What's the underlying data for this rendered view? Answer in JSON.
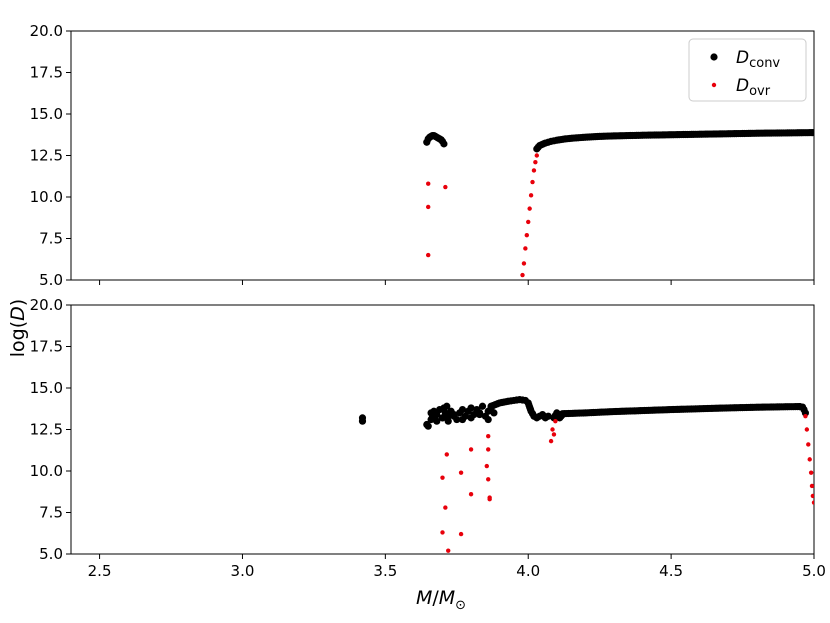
{
  "chart_data": [
    {
      "type": "scatter",
      "panel": "top",
      "xlim": [
        2.4,
        5.0
      ],
      "ylim": [
        5.0,
        20.0
      ],
      "yticks": [
        "5.0",
        "7.5",
        "10.0",
        "12.5",
        "15.0",
        "17.5",
        "20.0"
      ],
      "legend": {
        "placement": "top-right",
        "entries": [
          {
            "math": "D",
            "sub": "conv",
            "color": "#000000"
          },
          {
            "math": "D",
            "sub": "ovr",
            "color": "#e8000b"
          }
        ]
      },
      "series": [
        {
          "key": "conv",
          "color": "#000000",
          "segments": [
            {
              "x": [
                3.645,
                3.65,
                3.655,
                3.66,
                3.665,
                3.67,
                3.675,
                3.68,
                3.685,
                3.69,
                3.695,
                3.7,
                3.705
              ],
              "y": [
                13.3,
                13.5,
                13.6,
                13.65,
                13.7,
                13.7,
                13.65,
                13.6,
                13.55,
                13.5,
                13.45,
                13.35,
                13.2
              ]
            },
            {
              "x": [
                4.03,
                4.04,
                4.06,
                4.08,
                4.1,
                4.13,
                4.16,
                4.2,
                4.25,
                4.3,
                4.4,
                4.5,
                4.6,
                4.7,
                4.8,
                4.9,
                5.0
              ],
              "y": [
                12.9,
                13.1,
                13.25,
                13.35,
                13.42,
                13.5,
                13.55,
                13.6,
                13.65,
                13.68,
                13.72,
                13.75,
                13.78,
                13.81,
                13.84,
                13.86,
                13.88
              ]
            }
          ]
        },
        {
          "key": "ovr",
          "color": "#e8000b",
          "points": {
            "x": [
              3.65,
              3.65,
              3.65,
              3.71,
              3.98,
              3.985,
              3.99,
              3.995,
              4.0,
              4.005,
              4.01,
              4.015,
              4.02,
              4.025,
              4.03
            ],
            "y": [
              10.8,
              9.4,
              6.5,
              10.6,
              5.3,
              6.0,
              6.9,
              7.7,
              8.5,
              9.3,
              10.1,
              10.9,
              11.6,
              12.1,
              12.5
            ]
          }
        }
      ]
    },
    {
      "type": "scatter",
      "panel": "bottom",
      "xlim": [
        2.4,
        5.0
      ],
      "ylim": [
        5.0,
        20.0
      ],
      "xticks": [
        "2.5",
        "3.0",
        "3.5",
        "4.0",
        "4.5",
        "5.0"
      ],
      "yticks": [
        "5.0",
        "7.5",
        "10.0",
        "12.5",
        "15.0",
        "17.5",
        "20.0"
      ],
      "series": [
        {
          "key": "conv",
          "color": "#000000",
          "points": {
            "x": [
              3.42,
              3.42,
              3.645,
              3.65,
              3.66,
              3.665,
              3.67,
              3.675,
              3.68,
              3.69,
              3.7,
              3.705,
              3.71,
              3.715,
              3.72,
              3.73,
              3.74,
              3.75,
              3.76,
              3.77,
              3.78,
              3.79,
              3.8,
              3.81,
              3.82,
              3.83,
              3.84,
              3.85,
              3.86,
              3.87,
              3.88,
              3.66,
              3.68,
              3.7,
              3.72,
              3.74,
              3.77,
              3.8,
              3.83,
              3.86
            ],
            "y": [
              13.0,
              13.2,
              12.8,
              12.7,
              13.5,
              13.3,
              13.6,
              13.1,
              13.4,
              13.7,
              13.2,
              13.8,
              13.5,
              13.9,
              13.3,
              13.6,
              13.4,
              13.1,
              13.5,
              13.7,
              13.3,
              13.6,
              13.8,
              13.4,
              13.7,
              13.5,
              13.9,
              13.3,
              13.6,
              13.8,
              13.5,
              13.1,
              13.0,
              13.2,
              13.0,
              13.3,
              13.1,
              13.2,
              13.4,
              13.1
            ]
          },
          "segments": [
            {
              "x": [
                3.87,
                3.9,
                3.93,
                3.95,
                3.97,
                3.99,
                4.0,
                4.01,
                4.02,
                4.03,
                4.04,
                4.05,
                4.06,
                4.07
              ],
              "y": [
                13.9,
                14.1,
                14.2,
                14.25,
                14.3,
                14.25,
                14.1,
                13.6,
                13.3,
                13.2,
                13.3,
                13.4,
                13.2,
                13.3
              ]
            },
            {
              "x": [
                4.09,
                4.1,
                4.11,
                4.12
              ],
              "y": [
                13.2,
                13.5,
                13.2,
                13.4
              ]
            },
            {
              "x": [
                4.12,
                4.2,
                4.3,
                4.4,
                4.5,
                4.6,
                4.7,
                4.8,
                4.9,
                4.95
              ],
              "y": [
                13.45,
                13.5,
                13.58,
                13.64,
                13.7,
                13.75,
                13.8,
                13.84,
                13.87,
                13.88
              ]
            },
            {
              "x": [
                4.95,
                4.96,
                4.965,
                4.97
              ],
              "y": [
                13.88,
                13.85,
                13.7,
                13.5
              ]
            }
          ]
        },
        {
          "key": "ovr",
          "color": "#e8000b",
          "points": {
            "x": [
              3.7,
              3.71,
              3.715,
              3.72,
              3.7,
              3.765,
              3.765,
              3.8,
              3.8,
              3.855,
              3.86,
              3.86,
              3.86,
              3.865,
              3.865,
              4.08,
              4.085,
              4.09,
              4.095,
              4.97,
              4.975,
              4.98,
              4.985,
              4.99,
              4.993,
              4.996,
              5.0
            ],
            "y": [
              9.6,
              7.8,
              11.0,
              5.2,
              6.3,
              9.9,
              6.2,
              11.3,
              8.6,
              10.3,
              9.5,
              11.3,
              12.1,
              8.4,
              8.3,
              11.8,
              12.5,
              12.2,
              13.0,
              13.3,
              12.5,
              11.6,
              10.7,
              9.9,
              9.1,
              8.5,
              8.1
            ]
          }
        }
      ]
    }
  ],
  "axes": {
    "xlabel_main": "M",
    "xlabel_sep": "/",
    "xlabel_sub_main": "M",
    "xlabel_sub": "⊙",
    "ylabel": "log(D)"
  }
}
